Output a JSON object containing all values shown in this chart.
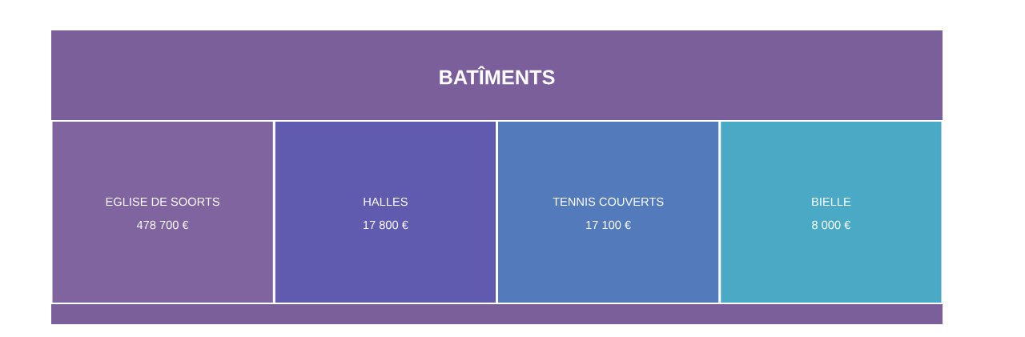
{
  "chart_data": {
    "type": "other",
    "title": "BATÎMENTS",
    "categories": [
      "EGLISE DE SOORTS",
      "HALLES",
      "TENNIS COUVERTS",
      "BIELLE"
    ],
    "values": [
      478700,
      17800,
      17100,
      8000
    ],
    "value_labels": [
      "478 700 €",
      "17 800 €",
      "17 100 €",
      "8 000 €"
    ],
    "colors": [
      "#8064a0",
      "#605bae",
      "#537bbb",
      "#4aaac5"
    ]
  }
}
